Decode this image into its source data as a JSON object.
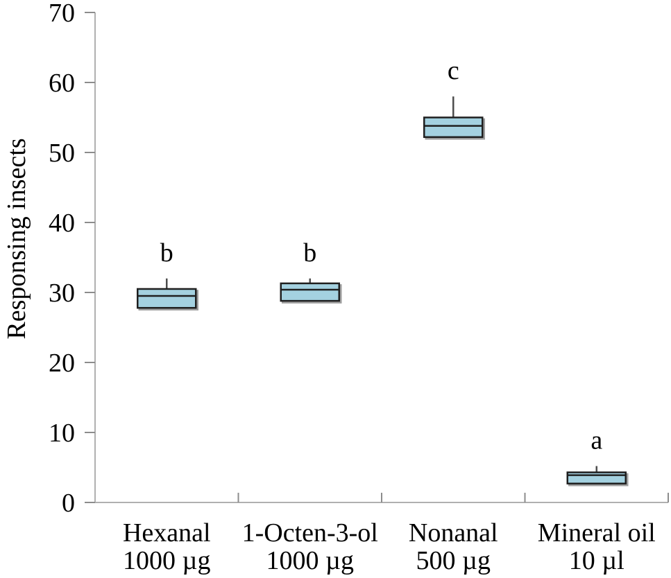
{
  "figure": {
    "background": "#ffffff"
  },
  "chart_data": {
    "type": "boxplot",
    "title": "",
    "xlabel": "",
    "ylabel": "Responsing insects",
    "ylim": [
      0,
      70
    ],
    "yticks": [
      0,
      10,
      20,
      30,
      40,
      50,
      60,
      70
    ],
    "grid": false,
    "legend": null,
    "categories": [
      {
        "label_line1": "Hexanal",
        "label_line2": "1000 µg",
        "letter": "b",
        "whisker_high": 32,
        "q3": 30.5,
        "median": 29.5,
        "q1": 27.8
      },
      {
        "label_line1": "1-Octen-3-ol",
        "label_line2": "1000 µg",
        "letter": "b",
        "whisker_high": 32,
        "q3": 31.3,
        "median": 30.4,
        "q1": 28.8
      },
      {
        "label_line1": "Nonanal",
        "label_line2": "500 µg",
        "letter": "c",
        "whisker_high": 58,
        "q3": 55,
        "median": 53.8,
        "q1": 52.2
      },
      {
        "label_line1": "Mineral oil",
        "label_line2": "10 µl",
        "letter": "a",
        "whisker_high": 5.2,
        "q3": 4.3,
        "median": 3.9,
        "q1": 2.7
      }
    ],
    "colors": {
      "box_fill": "#A4D1E0",
      "box_border": "#1f1f1f",
      "box_shadow": "#9e9e9e",
      "whisker": "#4d4d4d",
      "axis": "#b0b0b0",
      "tick": "#8c8c8c",
      "text": "#000000"
    }
  }
}
